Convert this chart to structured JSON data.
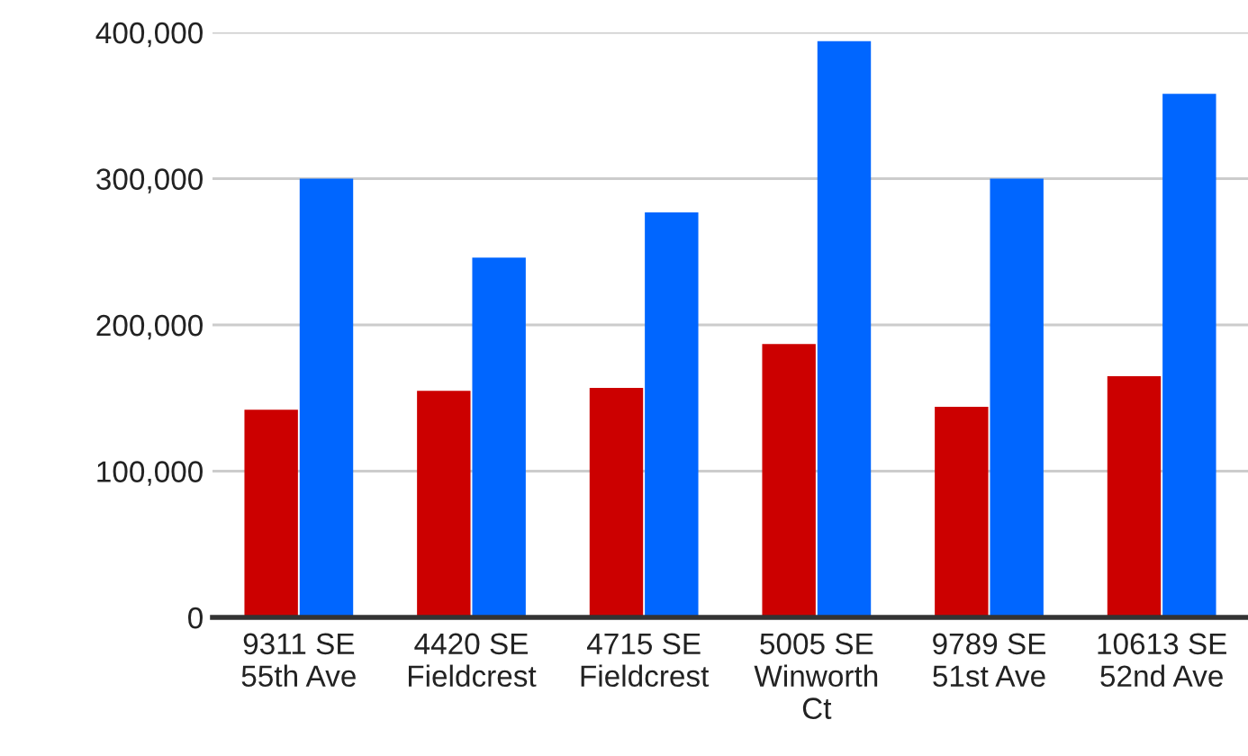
{
  "chart_data": {
    "type": "bar",
    "categories": [
      "9311 SE\n55th Ave",
      "4420 SE\nFieldcrest",
      "4715 SE\nFieldcrest",
      "5005 SE\nWinworth\nCt",
      "9789 SE\n51st Ave",
      "10613 SE\n52nd Ave"
    ],
    "series": [
      {
        "color": "#cc0000",
        "values": [
          142000,
          155000,
          157000,
          187000,
          144000,
          165000
        ]
      },
      {
        "color": "#0066ff",
        "values": [
          300000,
          246000,
          277000,
          394000,
          300000,
          358000
        ]
      }
    ],
    "ylim": [
      0,
      400000
    ],
    "yticks": [
      {
        "value": 0,
        "label": "0"
      },
      {
        "value": 100000,
        "label": "100,000"
      },
      {
        "value": 200000,
        "label": "200,000"
      },
      {
        "value": 300000,
        "label": "300,000"
      },
      {
        "value": 400000,
        "label": "400,000"
      }
    ],
    "grid": "y",
    "legend": false
  }
}
